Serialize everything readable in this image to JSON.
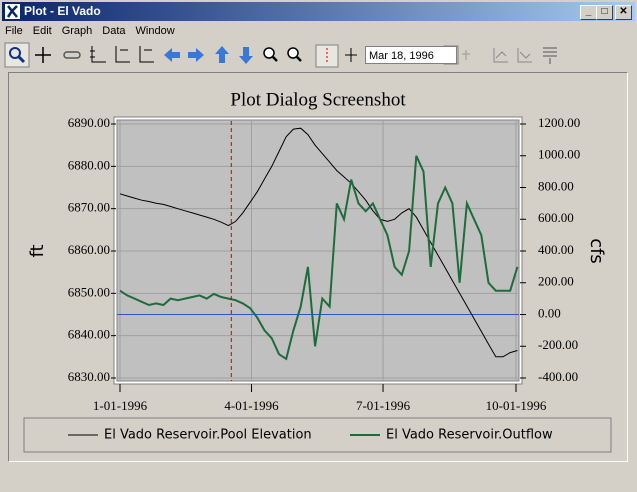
{
  "window": {
    "title": "Plot - El Vado"
  },
  "menu": [
    "File",
    "Edit",
    "Graph",
    "Data",
    "Window"
  ],
  "toolbar": {
    "date": "Mar 18, 1996"
  },
  "chart_data": {
    "type": "line",
    "title": "Plot Dialog Screenshot",
    "y_label": "ft",
    "y2_label": "cfs",
    "x": [
      0,
      5,
      10,
      15,
      20,
      25,
      30,
      35,
      40,
      45,
      50,
      55,
      60,
      65,
      70,
      75,
      80,
      85,
      90,
      95,
      100,
      105,
      110,
      115,
      120,
      125,
      130,
      135,
      140,
      145,
      150,
      155,
      160,
      165,
      170,
      175,
      180,
      185,
      190,
      195,
      200,
      205,
      210,
      215,
      220,
      225,
      230,
      235,
      240,
      245,
      250,
      255,
      260,
      265,
      270,
      275
    ],
    "xlim": [
      0,
      275
    ],
    "xticks": [
      {
        "value": 0,
        "label": "1-01-1996"
      },
      {
        "value": 91,
        "label": "4-01-1996"
      },
      {
        "value": 182,
        "label": "7-01-1996"
      },
      {
        "value": 274,
        "label": "10-01-1996"
      }
    ],
    "ylim": [
      6830,
      6890
    ],
    "yticks": [
      {
        "value": 6830,
        "label": "6830.00"
      },
      {
        "value": 6840,
        "label": "6840.00"
      },
      {
        "value": 6850,
        "label": "6850.00"
      },
      {
        "value": 6860,
        "label": "6860.00"
      },
      {
        "value": 6870,
        "label": "6870.00"
      },
      {
        "value": 6880,
        "label": "6880.00"
      },
      {
        "value": 6890,
        "label": "6890.00"
      }
    ],
    "y2lim": [
      -400,
      1200
    ],
    "y2ticks": [
      {
        "value": -400,
        "label": "-400.00"
      },
      {
        "value": -200,
        "label": "-200.00"
      },
      {
        "value": 0,
        "label": "0.00"
      },
      {
        "value": 200,
        "label": "200.00"
      },
      {
        "value": 400,
        "label": "400.00"
      },
      {
        "value": 600,
        "label": "600.00"
      },
      {
        "value": 800,
        "label": "800.00"
      },
      {
        "value": 1000,
        "label": "1000.00"
      },
      {
        "value": 1200,
        "label": "1200.00"
      }
    ],
    "grid": true,
    "plot_background": "#c0c0c0",
    "cursor_x": 77,
    "cursor_color": "#cc0000",
    "zero_line_color": "#3355cc",
    "series": [
      {
        "name": "El Vado Reservoir.Pool Elevation",
        "color": "#000000",
        "width": 1,
        "values": [
          6873.5,
          6873,
          6872.5,
          6872,
          6871.7,
          6871.3,
          6871,
          6870.5,
          6870,
          6869.5,
          6869,
          6868.5,
          6868,
          6867.5,
          6866.8,
          6866,
          6867,
          6869,
          6871.5,
          6874,
          6877,
          6880,
          6883.5,
          6887,
          6888.8,
          6889,
          6887.5,
          6885,
          6883,
          6881,
          6879,
          6877.5,
          6876,
          6874,
          6872,
          6869.5,
          6867.5,
          6867,
          6867.5,
          6869,
          6870,
          6868,
          6865,
          6862,
          6859,
          6856,
          6853,
          6850,
          6847,
          6844,
          6841,
          6838,
          6835,
          6835,
          6836,
          6836.5
        ]
      },
      {
        "name": "El Vado Reservoir.Outflow",
        "color": "#1e6b3c",
        "width": 2,
        "axis": "y2",
        "values": [
          150,
          120,
          100,
          80,
          60,
          70,
          60,
          100,
          90,
          100,
          110,
          120,
          100,
          130,
          110,
          100,
          90,
          70,
          40,
          -20,
          -100,
          -150,
          -250,
          -280,
          -100,
          50,
          300,
          -200,
          100,
          50,
          700,
          600,
          850,
          700,
          650,
          700,
          600,
          500,
          300,
          250,
          400,
          1000,
          900,
          300,
          700,
          800,
          700,
          200,
          700,
          600,
          500,
          200,
          150,
          150,
          150,
          300
        ]
      }
    ]
  }
}
